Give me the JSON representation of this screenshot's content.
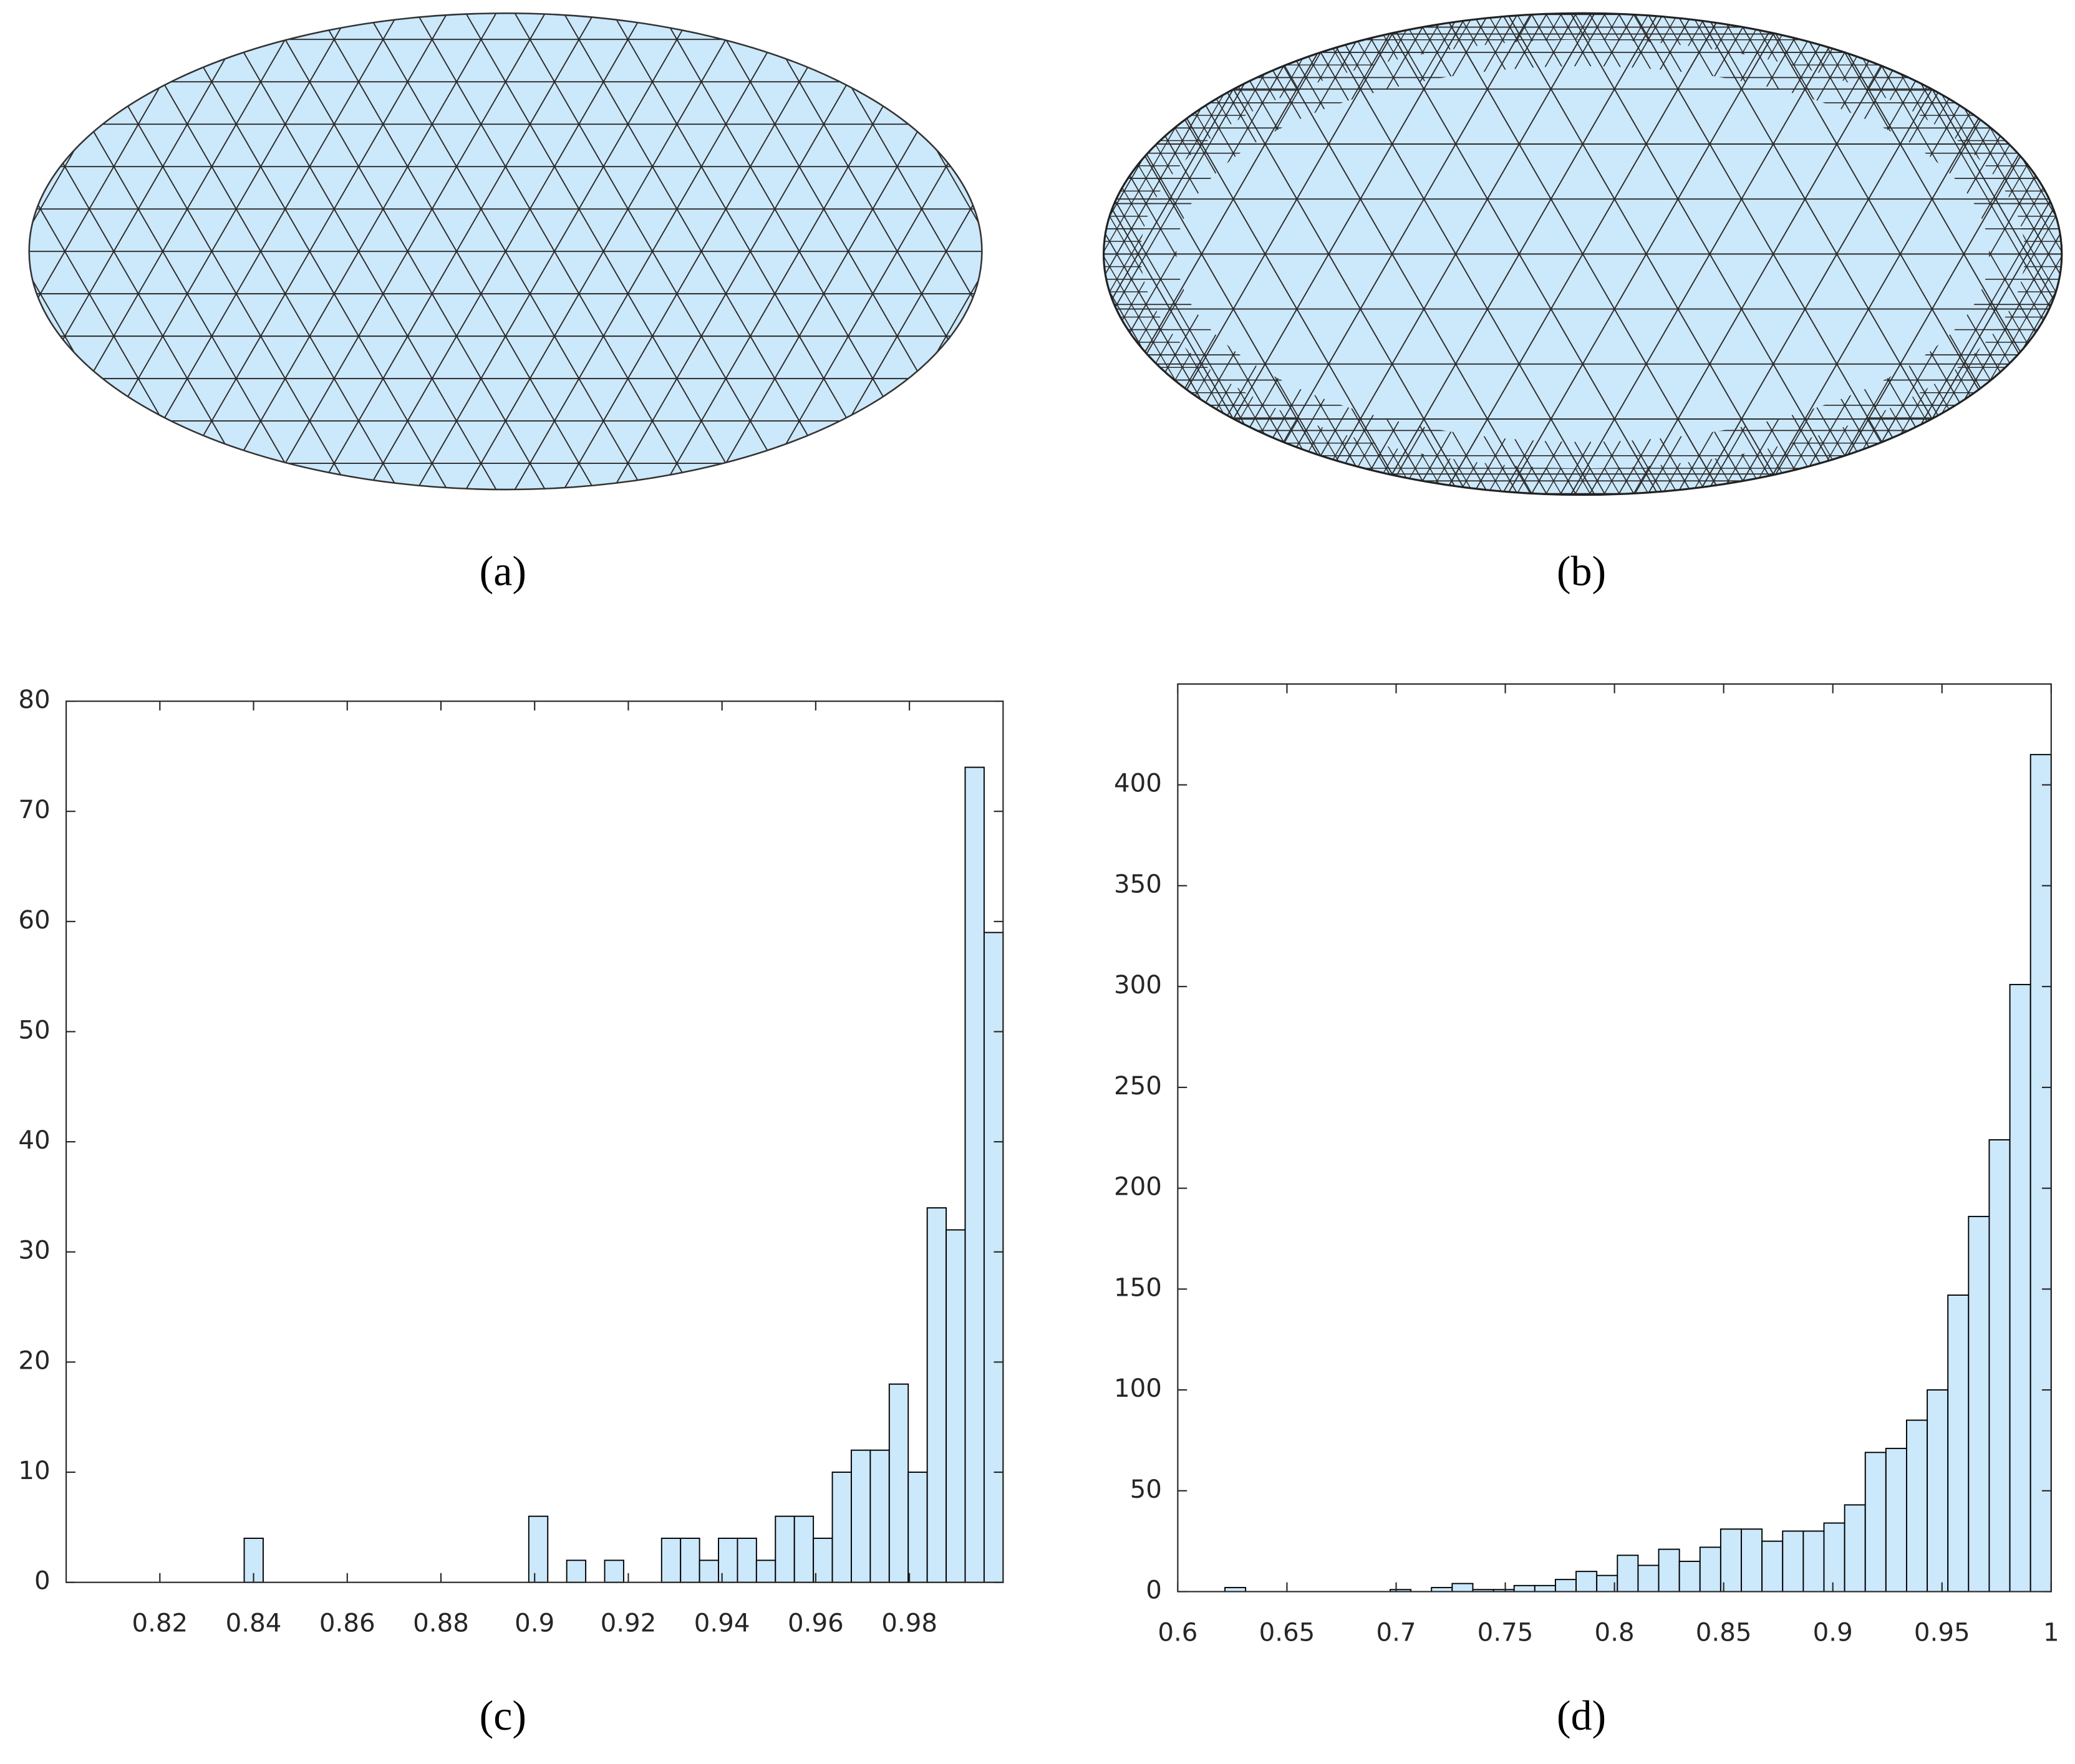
{
  "panels": [
    {
      "label": "(a)"
    },
    {
      "label": "(b)"
    }
  ],
  "chart_data": [
    {
      "type": "histogram",
      "label": "(c)",
      "bins": [
        0.838,
        0.84205,
        0.8461,
        0.85015,
        0.8542,
        0.85825,
        0.8623,
        0.86635,
        0.8704,
        0.87445,
        0.8785,
        0.88255,
        0.8866,
        0.89065,
        0.8947,
        0.89875,
        0.9028,
        0.90685,
        0.9109,
        0.91495,
        0.919,
        0.92305,
        0.9271,
        0.93115,
        0.9352,
        0.93925,
        0.9433,
        0.94735,
        0.9514,
        0.95545,
        0.9595,
        0.96355,
        0.9676,
        0.97165,
        0.9757,
        0.97975,
        0.9838,
        0.98785,
        0.9919,
        0.99595,
        1.0
      ],
      "values": [
        4,
        0,
        0,
        0,
        0,
        0,
        0,
        0,
        0,
        0,
        0,
        0,
        0,
        0,
        0,
        6,
        0,
        2,
        0,
        2,
        0,
        0,
        4,
        4,
        2,
        4,
        4,
        2,
        6,
        6,
        4,
        10,
        12,
        12,
        18,
        10,
        34,
        32,
        74,
        59
      ],
      "color": "#cce8fb",
      "xlim": [
        0.8,
        1.0
      ],
      "xticks": [
        0.82,
        0.84,
        0.86,
        0.88,
        0.9,
        0.92,
        0.94,
        0.96,
        0.98
      ],
      "ylim": [
        0,
        80
      ],
      "yticks": [
        0,
        10,
        20,
        30,
        40,
        50,
        60,
        70,
        80
      ]
    },
    {
      "type": "histogram",
      "label": "(d)",
      "bins": [
        0.6216,
        0.63106,
        0.64052,
        0.64998,
        0.65944,
        0.6689,
        0.67836,
        0.68782,
        0.69728,
        0.70674,
        0.7162,
        0.72566,
        0.73512,
        0.74458,
        0.75404,
        0.7635,
        0.77296,
        0.78242,
        0.79188,
        0.80134,
        0.8108,
        0.82026,
        0.82972,
        0.83918,
        0.84864,
        0.8581,
        0.86756,
        0.87702,
        0.88648,
        0.89594,
        0.9054,
        0.91486,
        0.92432,
        0.93378,
        0.94324,
        0.9527,
        0.96216,
        0.97162,
        0.98108,
        0.99054,
        1.0
      ],
      "values": [
        2,
        0,
        0,
        0,
        0,
        0,
        0,
        0,
        1,
        0,
        2,
        4,
        1,
        1,
        3,
        3,
        6,
        10,
        8,
        18,
        13,
        21,
        15,
        22,
        31,
        31,
        25,
        30,
        30,
        34,
        43,
        69,
        71,
        85,
        100,
        147,
        186,
        224,
        301,
        415
      ],
      "color": "#cce8fb",
      "xlim": [
        0.6,
        1.0
      ],
      "xticks": [
        0.6,
        0.65,
        0.7,
        0.75,
        0.8,
        0.85,
        0.9,
        0.95,
        1
      ],
      "ylim": [
        0,
        450
      ],
      "yticks": [
        0,
        50,
        100,
        150,
        200,
        250,
        300,
        350,
        400
      ]
    }
  ]
}
